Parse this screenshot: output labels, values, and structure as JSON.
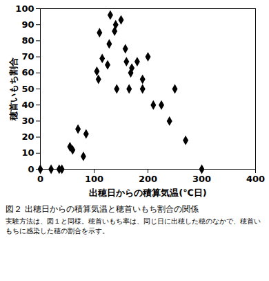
{
  "chart_data": {
    "type": "scatter",
    "title": "図２ 出穂日からの積算気温と穂首いもち割合の関係",
    "subtitle": "実験方法は、図１と同様。穂首いもち率は、同じ日に出穂した穂のなかで、穂首いもちに感染した穂の割合を示す。",
    "x_label": "出穂日からの積算気温(℃日)",
    "y_label": "穂首いもち割合",
    "x": [
      0,
      20,
      35,
      40,
      55,
      60,
      70,
      80,
      85,
      105,
      108,
      110,
      115,
      125,
      128,
      130,
      138,
      140,
      142,
      150,
      158,
      160,
      165,
      168,
      170,
      180,
      190,
      190,
      200,
      210,
      225,
      240,
      250,
      270,
      300
    ],
    "values": [
      0,
      0,
      0,
      0,
      14,
      12,
      25,
      8,
      22,
      61,
      56,
      85,
      69,
      65,
      78,
      96,
      86,
      90,
      50,
      93,
      75,
      67,
      50,
      60,
      63,
      67,
      56,
      50,
      70,
      40,
      40,
      30,
      50,
      18,
      0
    ],
    "color": "#000000",
    "marker": "diamond",
    "xlim": [
      0,
      400
    ],
    "xticks": [
      0,
      100,
      200,
      300,
      400
    ],
    "ylim": [
      0,
      100
    ],
    "yticks": [
      0,
      10,
      20,
      30,
      40,
      50,
      60,
      70,
      80,
      90,
      100
    ],
    "grid": false
  }
}
